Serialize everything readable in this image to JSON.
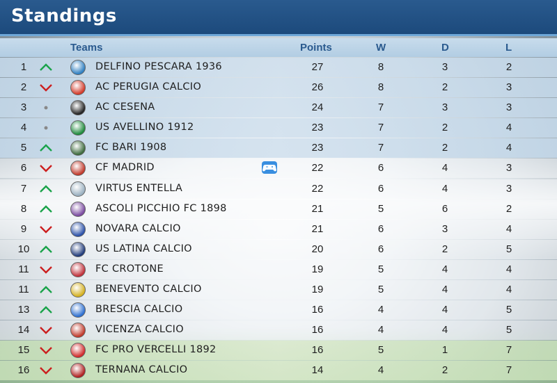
{
  "header": {
    "title": "Standings"
  },
  "columns": {
    "teams": "Teams",
    "points": "Points",
    "w": "W",
    "d": "D",
    "l": "L"
  },
  "colors": {
    "up": "#1aa34a",
    "down": "#cc1f1f",
    "same": "#888888",
    "header_bg": "#1c4a7c"
  },
  "rows": [
    {
      "pos": "1",
      "trend": "up",
      "team": "DELFINO PESCARA 1936",
      "crest": "#2f7fc1",
      "points": "27",
      "w": "8",
      "d": "3",
      "l": "2",
      "style": "blue"
    },
    {
      "pos": "2",
      "trend": "down",
      "team": "AC PERUGIA CALCIO",
      "crest": "#d23a2a",
      "points": "26",
      "w": "8",
      "d": "2",
      "l": "3",
      "style": "blue"
    },
    {
      "pos": "3",
      "trend": "same",
      "team": "AC CESENA",
      "crest": "#222222",
      "points": "24",
      "w": "7",
      "d": "3",
      "l": "3",
      "style": "blue"
    },
    {
      "pos": "4",
      "trend": "same",
      "team": "US AVELLINO 1912",
      "crest": "#1e8a3c",
      "points": "23",
      "w": "7",
      "d": "2",
      "l": "4",
      "style": "blue"
    },
    {
      "pos": "5",
      "trend": "up",
      "team": "FC BARI 1908",
      "crest": "#3d6b3d",
      "points": "23",
      "w": "7",
      "d": "2",
      "l": "4",
      "style": "blue"
    },
    {
      "pos": "6",
      "trend": "down",
      "team": "CF MADRID",
      "crest": "#c0392b",
      "points": "22",
      "w": "6",
      "d": "4",
      "l": "3",
      "style": "white",
      "controller": true
    },
    {
      "pos": "7",
      "trend": "up",
      "team": "VIRTUS ENTELLA",
      "crest": "#9ab0c0",
      "points": "22",
      "w": "6",
      "d": "4",
      "l": "3",
      "style": "white"
    },
    {
      "pos": "8",
      "trend": "up",
      "team": "ASCOLI PICCHIO FC 1898",
      "crest": "#7a4aa0",
      "points": "21",
      "w": "5",
      "d": "6",
      "l": "2",
      "style": "white"
    },
    {
      "pos": "9",
      "trend": "down",
      "team": "NOVARA CALCIO",
      "crest": "#2a50a8",
      "points": "21",
      "w": "6",
      "d": "3",
      "l": "4",
      "style": "white"
    },
    {
      "pos": "10",
      "trend": "up",
      "team": "US LATINA CALCIO",
      "crest": "#1f3a7a",
      "points": "20",
      "w": "6",
      "d": "2",
      "l": "5",
      "style": "white"
    },
    {
      "pos": "11",
      "trend": "down",
      "team": "FC CROTONE",
      "crest": "#c0303a",
      "points": "19",
      "w": "5",
      "d": "4",
      "l": "4",
      "style": "white"
    },
    {
      "pos": "11",
      "trend": "up",
      "team": "BENEVENTO CALCIO",
      "crest": "#d4b020",
      "points": "19",
      "w": "5",
      "d": "4",
      "l": "4",
      "style": "white"
    },
    {
      "pos": "13",
      "trend": "up",
      "team": "BRESCIA CALCIO",
      "crest": "#2d6fd0",
      "points": "16",
      "w": "4",
      "d": "4",
      "l": "5",
      "style": "white"
    },
    {
      "pos": "14",
      "trend": "down",
      "team": "VICENZA CALCIO",
      "crest": "#c0392b",
      "points": "16",
      "w": "4",
      "d": "4",
      "l": "5",
      "style": "white"
    },
    {
      "pos": "15",
      "trend": "down",
      "team": "FC PRO VERCELLI 1892",
      "crest": "#d02a2a",
      "points": "16",
      "w": "5",
      "d": "1",
      "l": "7",
      "style": "green"
    },
    {
      "pos": "16",
      "trend": "down",
      "team": "TERNANA CALCIO",
      "crest": "#b02020",
      "points": "14",
      "w": "4",
      "d": "2",
      "l": "7",
      "style": "green"
    }
  ]
}
